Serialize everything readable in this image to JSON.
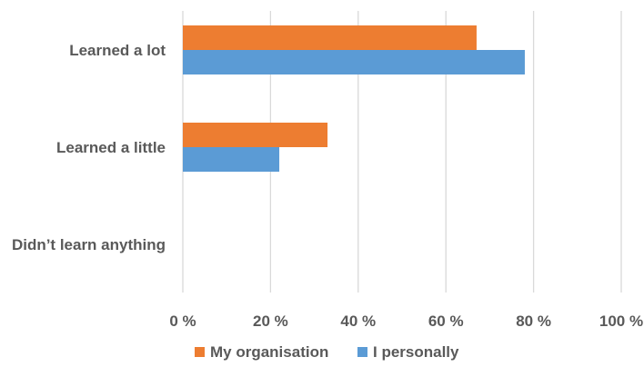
{
  "chart_data": {
    "type": "bar",
    "orientation": "horizontal",
    "title": "",
    "xlabel": "",
    "ylabel": "",
    "categories": [
      "Learned a lot",
      "Learned a little",
      "Didn’t learn anything"
    ],
    "series": [
      {
        "name": "My organisation",
        "color": "#ED7D31",
        "values": [
          67,
          33,
          0
        ]
      },
      {
        "name": "I personally",
        "color": "#5B9BD5",
        "values": [
          78,
          22,
          0
        ]
      }
    ],
    "xlim": [
      0,
      100
    ],
    "ticks": [
      0,
      20,
      40,
      60,
      80,
      100
    ],
    "tick_labels": [
      "0 %",
      "20 %",
      "40 %",
      "60 %",
      "80 %",
      "100 %"
    ],
    "grid": true,
    "legend_position": "bottom"
  }
}
